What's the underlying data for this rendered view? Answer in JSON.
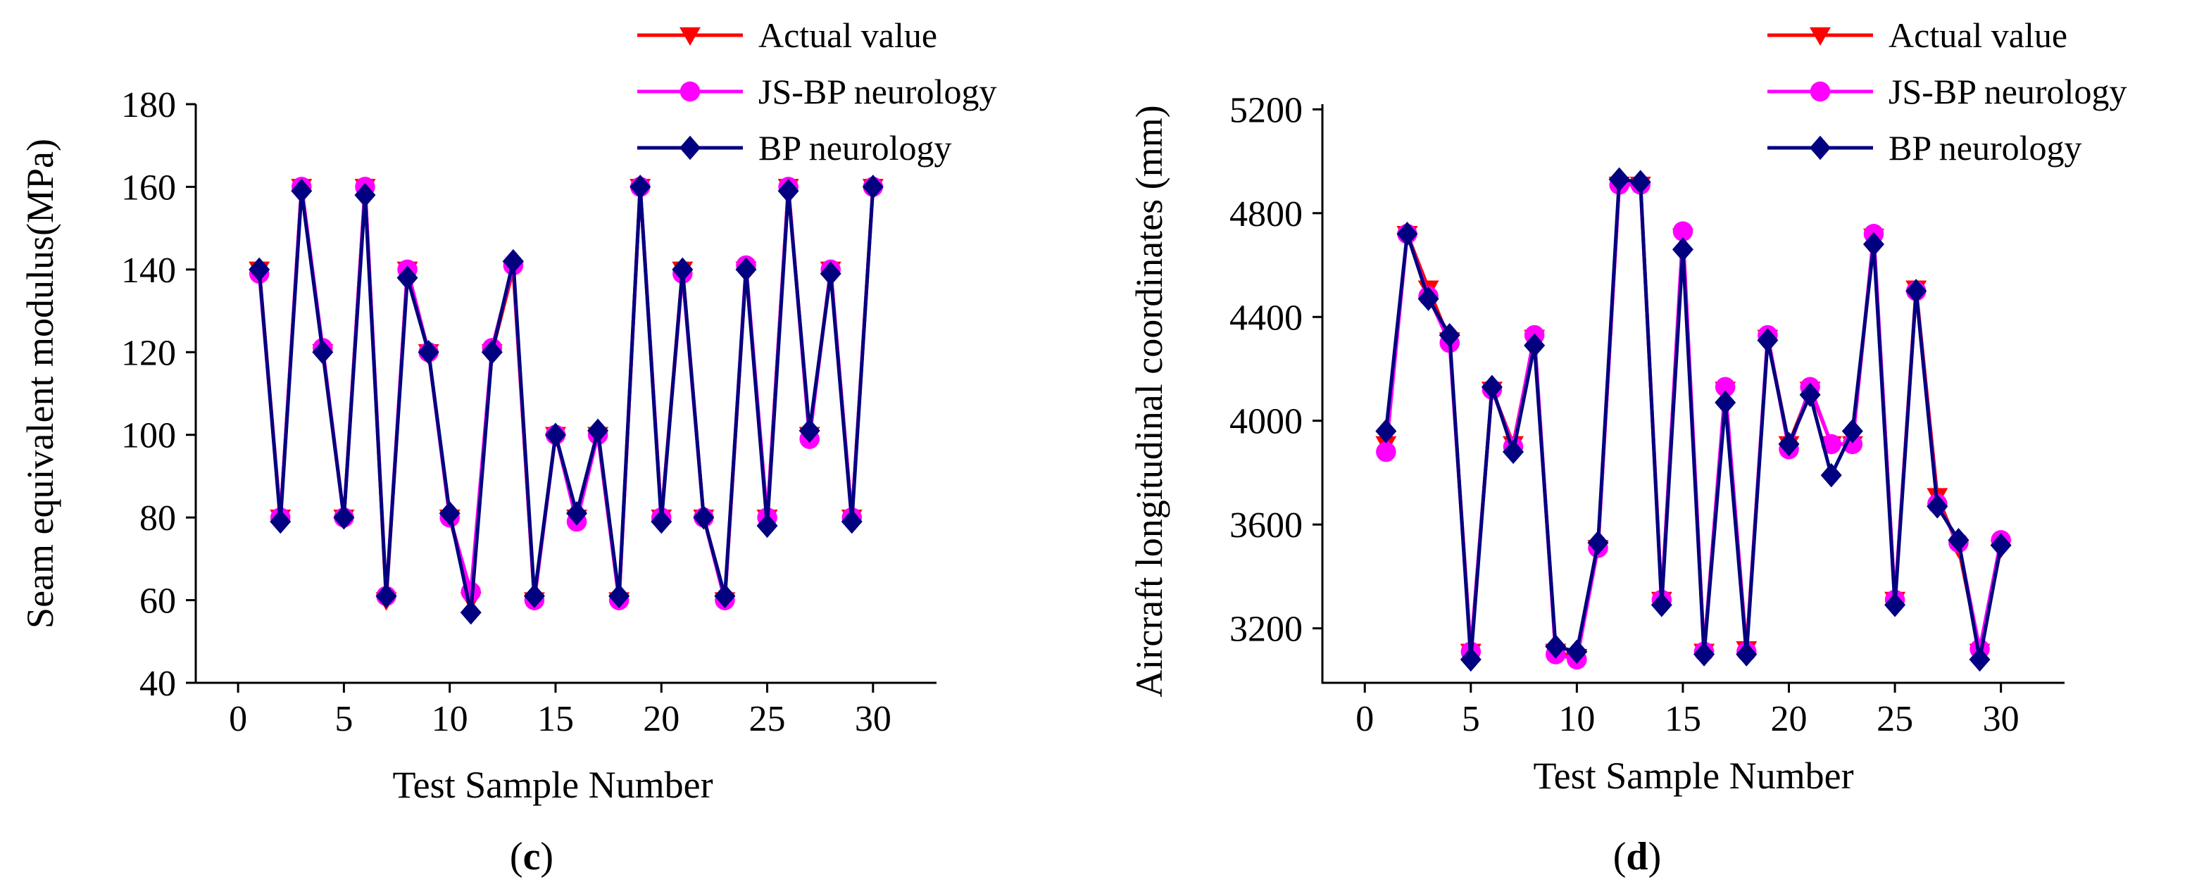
{
  "figure": {
    "panels": [
      "c",
      "d"
    ]
  },
  "chart_data": [
    {
      "type": "line",
      "panel_label": "c",
      "xlabel": "Test Sample Number",
      "ylabel": "Seam equivalent modulus(MPa)",
      "xlim": [
        -2,
        33
      ],
      "ylim": [
        40,
        180
      ],
      "xticks": [
        0,
        5,
        10,
        15,
        20,
        25,
        30
      ],
      "yticks": [
        40,
        60,
        80,
        100,
        120,
        140,
        160,
        180
      ],
      "legend_position": "top-right",
      "x": [
        1,
        2,
        3,
        4,
        5,
        6,
        7,
        8,
        9,
        10,
        11,
        12,
        13,
        14,
        15,
        16,
        17,
        18,
        19,
        20,
        21,
        22,
        23,
        24,
        25,
        26,
        27,
        28,
        29,
        30
      ],
      "series": [
        {
          "name": "Actual value",
          "color": "#ff0000",
          "marker": "triangle-down",
          "values": [
            140,
            80,
            160,
            120,
            80,
            160,
            60,
            140,
            120,
            80,
            60,
            120,
            140,
            60,
            100,
            80,
            100,
            60,
            160,
            80,
            140,
            80,
            60,
            140,
            80,
            160,
            100,
            140,
            80,
            160
          ]
        },
        {
          "name": "JS-BP neurology",
          "color": "#ff00ff",
          "marker": "circle",
          "values": [
            139,
            80,
            160,
            121,
            80,
            160,
            61,
            140,
            120,
            80,
            62,
            121,
            141,
            60,
            100,
            79,
            100,
            60,
            160,
            80,
            139,
            80,
            60,
            141,
            80,
            160,
            99,
            140,
            80,
            160
          ]
        },
        {
          "name": "BP neurology",
          "color": "#000080",
          "marker": "diamond",
          "values": [
            140,
            79,
            159,
            120,
            80,
            158,
            61,
            138,
            120,
            81,
            57,
            120,
            142,
            61,
            100,
            81,
            101,
            61,
            160,
            79,
            140,
            80,
            61,
            140,
            78,
            159,
            101,
            139,
            79,
            160
          ]
        }
      ]
    },
    {
      "type": "line",
      "panel_label": "d",
      "xlabel": "Test Sample Number",
      "ylabel": "Aircraft longitudinal coordinates (mm)",
      "xlim": [
        -2,
        33
      ],
      "ylim": [
        2990,
        5220
      ],
      "xticks": [
        0,
        5,
        10,
        15,
        20,
        25,
        30
      ],
      "yticks": [
        3200,
        3600,
        4000,
        4400,
        4800,
        5200
      ],
      "legend_position": "top-right",
      "x": [
        1,
        2,
        3,
        4,
        5,
        6,
        7,
        8,
        9,
        10,
        11,
        12,
        13,
        14,
        15,
        16,
        17,
        18,
        19,
        20,
        21,
        22,
        23,
        24,
        25,
        26,
        27,
        28,
        29,
        30
      ],
      "series": [
        {
          "name": "Actual value",
          "color": "#ff0000",
          "marker": "triangle-down",
          "values": [
            3910,
            4720,
            4510,
            4310,
            3110,
            4120,
            3910,
            4320,
            3110,
            3090,
            3510,
            4910,
            4910,
            3310,
            4710,
            3110,
            4120,
            3120,
            4320,
            3910,
            4120,
            3910,
            3910,
            4710,
            3310,
            4510,
            3710,
            3510,
            3110,
            3510
          ]
        },
        {
          "name": "JS-BP neurology",
          "color": "#ff00ff",
          "marker": "circle",
          "values": [
            3880,
            4720,
            4480,
            4300,
            3110,
            4120,
            3900,
            4330,
            3100,
            3080,
            3510,
            4910,
            4910,
            3310,
            4730,
            3110,
            4130,
            3110,
            4330,
            3890,
            4130,
            3910,
            3910,
            4720,
            3310,
            4500,
            3680,
            3530,
            3120,
            3540
          ]
        },
        {
          "name": "BP neurology",
          "color": "#000080",
          "marker": "diamond",
          "values": [
            3960,
            4720,
            4470,
            4330,
            3080,
            4130,
            3880,
            4290,
            3130,
            3110,
            3530,
            4930,
            4920,
            3290,
            4660,
            3100,
            4070,
            3100,
            4310,
            3910,
            4100,
            3790,
            3960,
            4680,
            3290,
            4500,
            3670,
            3540,
            3080,
            3520
          ]
        }
      ]
    }
  ]
}
